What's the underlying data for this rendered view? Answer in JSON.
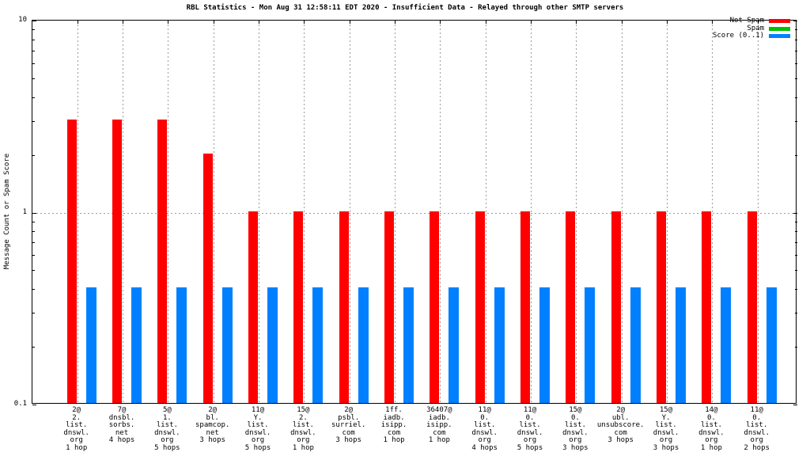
{
  "title": "RBL Statistics - Mon Aug 31 12:58:11 EDT 2020 - Insufficient Data - Relayed through other SMTP servers",
  "chart_data": {
    "type": "bar",
    "title": "RBL Statistics - Mon Aug 31 12:58:11 EDT 2020 - Insufficient Data - Relayed through other SMTP servers",
    "ylabel": "Message Count or Spam Score",
    "xlabel": "",
    "y_scale": "log",
    "ylim": [
      0.1,
      10
    ],
    "y_major_ticks": [
      0.1,
      1,
      10
    ],
    "y_major_tick_labels": [
      "0.1",
      "1",
      "10"
    ],
    "y_minor_ticks": [
      0.2,
      0.3,
      0.4,
      0.5,
      0.6,
      0.7,
      0.8,
      0.9,
      2,
      3,
      4,
      5,
      6,
      7,
      8,
      9
    ],
    "grid": {
      "style": "dashed",
      "color": "#9b9b9b",
      "horizontal_at": [
        1
      ],
      "vertical": "one dashed line per category"
    },
    "legend_position": "top-right-inside",
    "legend": {
      "entries": [
        {
          "label": "Not Spam",
          "color": "#ff0000"
        },
        {
          "label": "Spam",
          "color": "#00c000"
        },
        {
          "label": "Score (0..1)",
          "color": "#0080ff"
        }
      ]
    },
    "categories": [
      [
        "2@",
        "2.",
        "list.",
        "dnswl.",
        "org",
        "1 hop"
      ],
      [
        "7@",
        "dnsbl.",
        "sorbs.",
        "net",
        "4 hops"
      ],
      [
        "5@",
        "1.",
        "list.",
        "dnswl.",
        "org",
        "5 hops"
      ],
      [
        "2@",
        "bl.",
        "spamcop.",
        "net",
        "3 hops"
      ],
      [
        "11@",
        "Y.",
        "list.",
        "dnswl.",
        "org",
        "5 hops"
      ],
      [
        "15@",
        "2.",
        "list.",
        "dnswl.",
        "org",
        "1 hop"
      ],
      [
        "2@",
        "psbl.",
        "surriel.",
        "com",
        "3 hops"
      ],
      [
        "1ff.",
        "iadb.",
        "isipp.",
        "com",
        "1 hop"
      ],
      [
        "36407@",
        "iadb.",
        "isipp.",
        "com",
        "1 hop"
      ],
      [
        "11@",
        "0.",
        "list.",
        "dnswl.",
        "org",
        "4 hops"
      ],
      [
        "11@",
        "0.",
        "list.",
        "dnswl.",
        "org",
        "5 hops"
      ],
      [
        "15@",
        "0.",
        "list.",
        "dnswl.",
        "org",
        "3 hops"
      ],
      [
        "2@",
        "ubl.",
        "unsubscore.",
        "com",
        "3 hops"
      ],
      [
        "15@",
        "Y.",
        "list.",
        "dnswl.",
        "org",
        "3 hops"
      ],
      [
        "14@",
        "0.",
        "list.",
        "dnswl.",
        "org",
        "1 hop"
      ],
      [
        "11@",
        "0.",
        "list.",
        "dnswl.",
        "org",
        "2 hops"
      ]
    ],
    "series": [
      {
        "name": "Not Spam",
        "color": "#ff0000",
        "values": [
          3,
          3,
          3,
          2,
          1,
          1,
          1,
          1,
          1,
          1,
          1,
          1,
          1,
          1,
          1,
          1
        ]
      },
      {
        "name": "Spam",
        "color": "#00c000",
        "values": [
          0,
          0,
          0,
          0,
          0,
          0,
          0,
          0,
          0,
          0,
          0,
          0,
          0,
          0,
          0,
          0
        ]
      },
      {
        "name": "Score (0..1)",
        "color": "#0080ff",
        "values": [
          0.4,
          0.4,
          0.4,
          0.4,
          0.4,
          0.4,
          0.4,
          0.4,
          0.4,
          0.4,
          0.4,
          0.4,
          0.4,
          0.4,
          0.4,
          0.4
        ]
      }
    ]
  }
}
